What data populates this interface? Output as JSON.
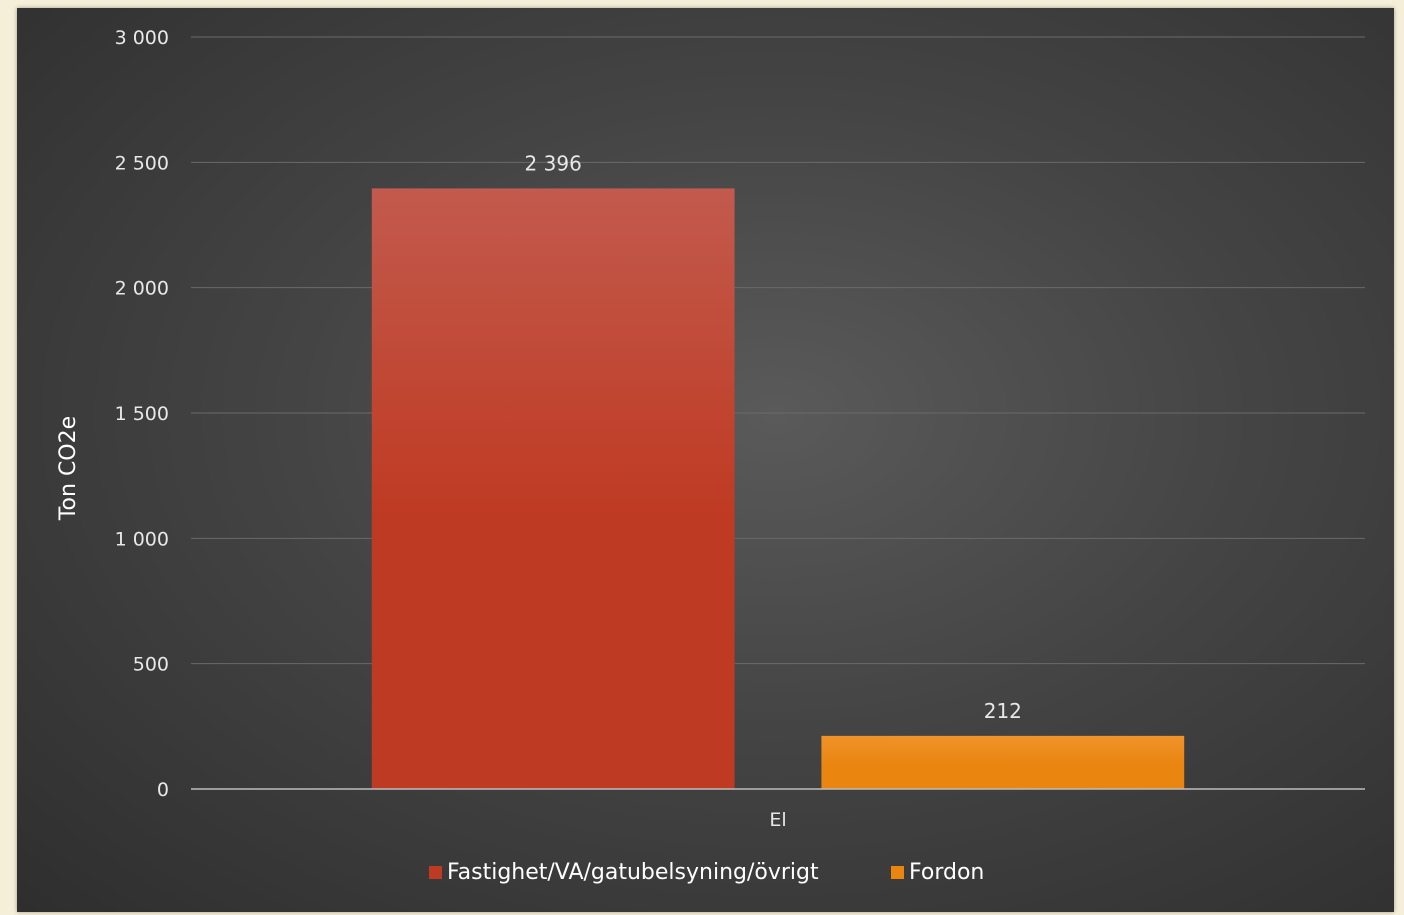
{
  "chart_data": {
    "type": "bar",
    "categories": [
      "El"
    ],
    "series": [
      {
        "name": "Fastighet/VA/gatubelsyning/övrigt",
        "values": [
          2396
        ],
        "color": "#bf3a22",
        "color_top": "#c25a4d",
        "label": "2 396"
      },
      {
        "name": "Fordon",
        "values": [
          212
        ],
        "color": "#ea8510",
        "color_top": "#f0932a",
        "label": "212"
      }
    ],
    "title": "",
    "xlabel": "",
    "ylabel": "Ton CO2e",
    "ylim": [
      0,
      3000
    ],
    "yticks": [
      0,
      500,
      1000,
      1500,
      2000,
      2500,
      3000
    ],
    "ytick_labels": [
      "0",
      "500",
      "1 000",
      "1 500",
      "2 000",
      "2 500",
      "3 000"
    ],
    "grid": true,
    "legend_position": "bottom"
  }
}
